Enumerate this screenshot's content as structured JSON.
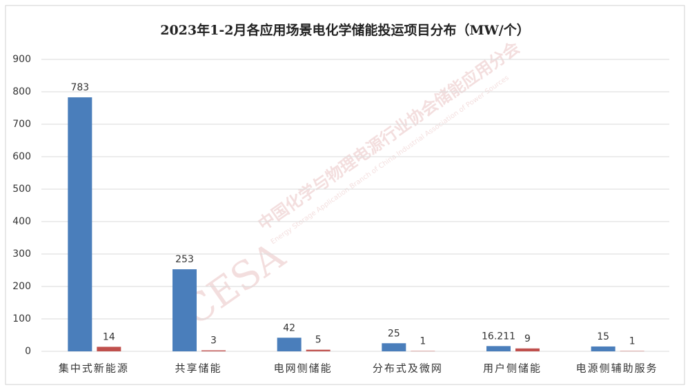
{
  "chart_data": {
    "type": "bar",
    "title": "2023年1-2月各应用场景电化学储能投运项目分布（MW/个）",
    "categories": [
      "集中式新能源",
      "共享储能",
      "电网侧储能",
      "分布式及微网",
      "用户侧储能",
      "电源侧辅助服务"
    ],
    "series": [
      {
        "color": "#4a7ebb",
        "values": [
          783,
          253,
          42,
          25,
          16.211,
          15
        ]
      },
      {
        "color": "#c0504d",
        "values": [
          14,
          3,
          5,
          1,
          9,
          1
        ]
      }
    ],
    "ylim": [
      0,
      900
    ],
    "yticks": [
      0,
      100,
      200,
      300,
      400,
      500,
      600,
      700,
      800,
      900
    ],
    "grid": true,
    "watermark": {
      "logo": "CESA",
      "name": "中国化学与物理电源行业协会储能应用分会",
      "english": "Energy Storage Application Branch of China Industrial Association of Power Sources"
    }
  }
}
